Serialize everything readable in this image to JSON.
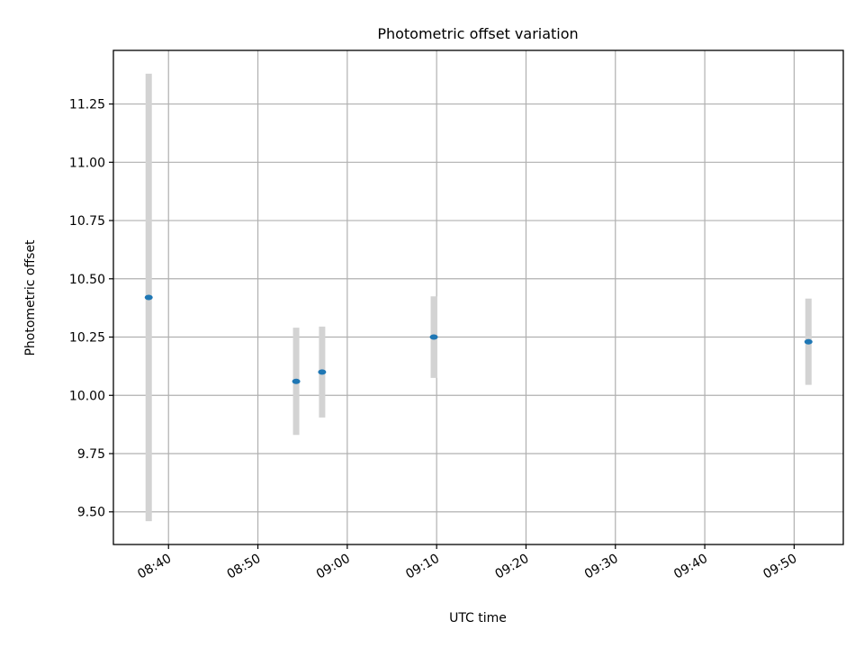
{
  "chart_data": {
    "type": "scatter",
    "title": "Photometric offset variation",
    "xlabel": "UTC time",
    "ylabel": "Photometric offset",
    "x_tick_labels": [
      "08:40",
      "08:50",
      "09:00",
      "09:10",
      "09:20",
      "09:30",
      "09:40",
      "09:50"
    ],
    "y_tick_labels": [
      "9.50",
      "9.75",
      "10.00",
      "10.25",
      "10.50",
      "10.75",
      "11.00",
      "11.25"
    ],
    "x_ticks": [
      "08:40",
      "08:50",
      "09:00",
      "09:10",
      "09:20",
      "09:30",
      "09:40",
      "09:50"
    ],
    "y_ticks": [
      9.5,
      9.75,
      10.0,
      10.25,
      10.5,
      10.75,
      11.0,
      11.25
    ],
    "xlim": [
      "08:33:50",
      "09:55:30"
    ],
    "ylim": [
      9.36,
      11.48
    ],
    "grid": true,
    "x_tick_rotation": "rotated",
    "points": [
      {
        "x": "08:37:47",
        "y": 10.42,
        "yerr": 0.96
      },
      {
        "x": "08:54:17",
        "y": 10.06,
        "yerr": 0.23
      },
      {
        "x": "08:57:11",
        "y": 10.1,
        "yerr": 0.195
      },
      {
        "x": "09:09:41",
        "y": 10.25,
        "yerr": 0.175
      },
      {
        "x": "09:51:36",
        "y": 10.23,
        "yerr": 0.185
      }
    ],
    "colors": {
      "point": "#1f77b4",
      "errorbar": "#d3d3d3",
      "grid": "#b0b0b0",
      "axes": "#000000"
    }
  }
}
